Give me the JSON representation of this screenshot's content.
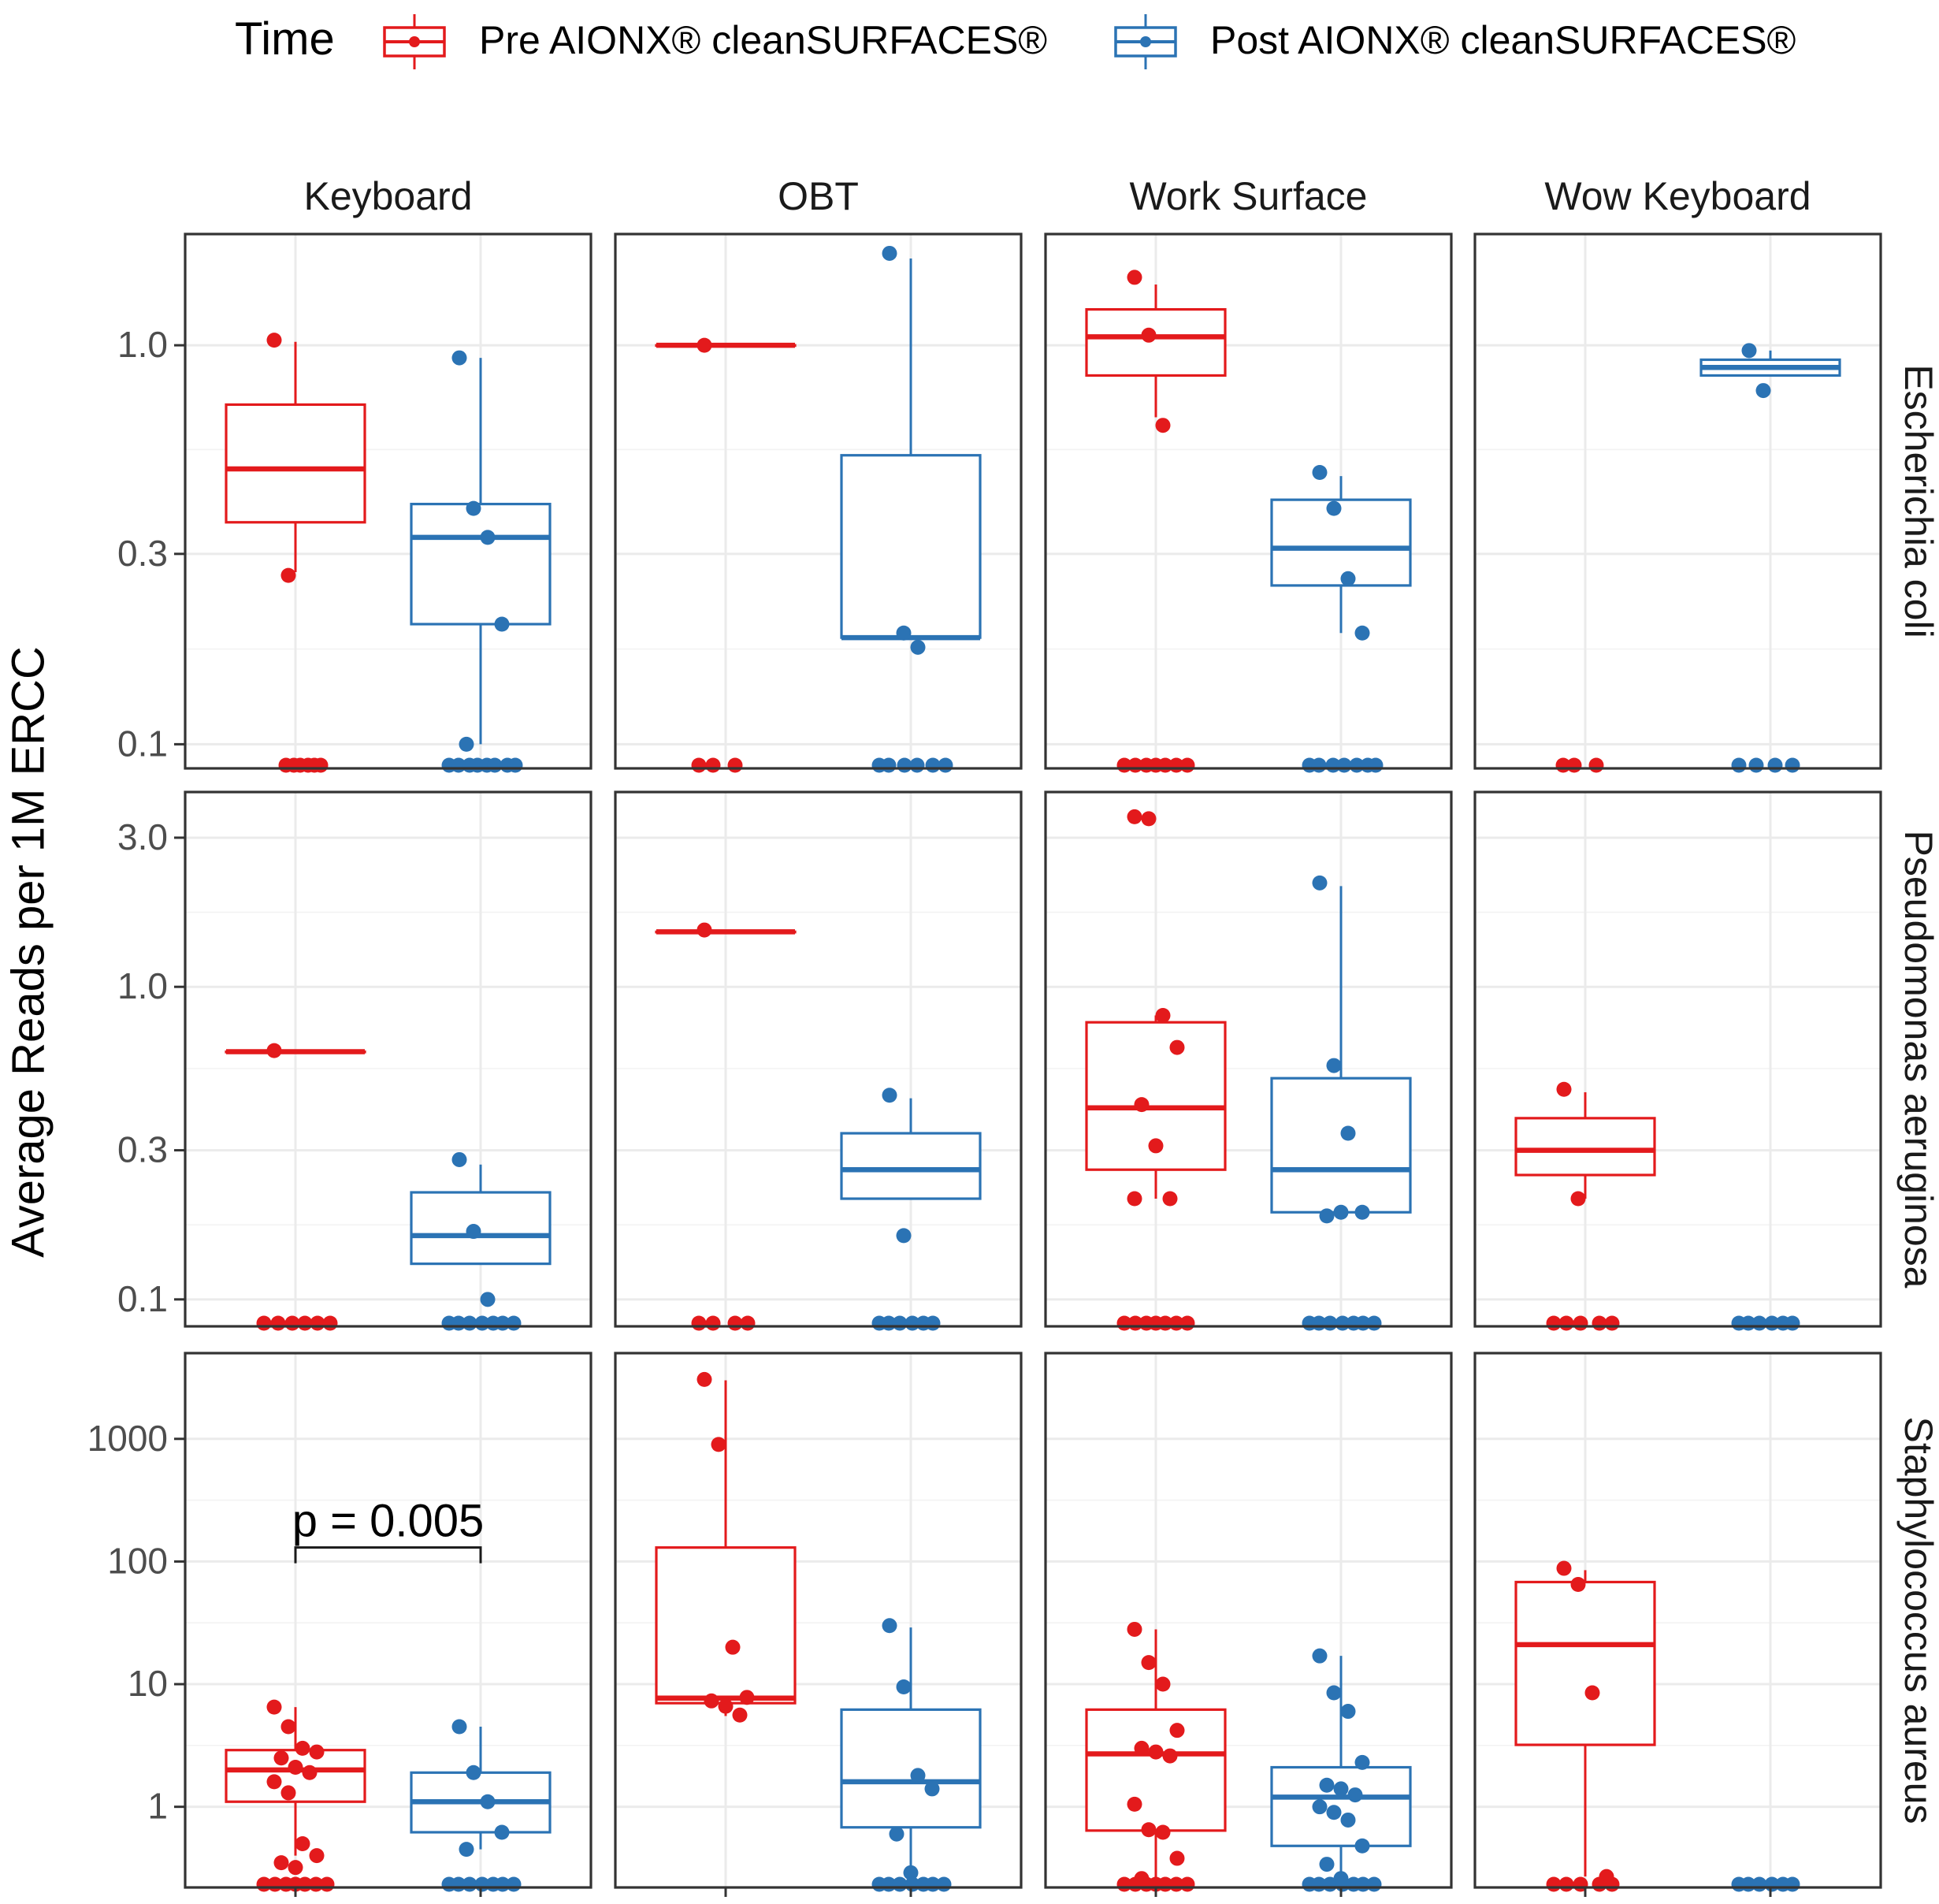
{
  "legend": {
    "title": "Time",
    "items": [
      {
        "label": "Pre AIONX® cleanSURFACES®",
        "color": "#e31a1c"
      },
      {
        "label": "Post AIONX® cleanSURFACES®",
        "color": "#2b73b4"
      }
    ]
  },
  "y_axis_label": "Average Reads per 1M ERCC",
  "chart_data": {
    "type": "boxplot",
    "scale": "log10",
    "columns": [
      "Keyboard",
      "OBT",
      "Work Surface",
      "Wow Keyboard"
    ],
    "groups": [
      "Pre AIONX® cleanSURFACES®",
      "Post AIONX® cleanSURFACES®"
    ],
    "colors": [
      "#e31a1c",
      "#2b73b4"
    ],
    "rows": [
      {
        "organism": "Escherichia coli",
        "ylim": [
          0.087,
          1.9
        ],
        "ticks": [
          {
            "v": 0.1,
            "label": "0.1"
          },
          {
            "v": 0.3,
            "label": "0.3"
          },
          {
            "v": 1.0,
            "label": "1.0"
          }
        ],
        "panels": [
          {
            "boxes": [
              {
                "box": [
                  0.36,
                  0.49,
                  0.71
                ],
                "whiskers": [
                  0.27,
                  1.02
                ],
                "points": [
                  1.03,
                  0.265
                ],
                "zeros": [
                  -12,
                  -2,
                  6,
                  16,
                  24,
                  32
                ]
              },
              {
                "box": [
                  0.2,
                  0.33,
                  0.4
                ],
                "whiskers": [
                  0.1,
                  0.93
                ],
                "points": [
                  0.93,
                  0.39,
                  0.33,
                  0.2,
                  0.1
                ],
                "zeros": [
                  -40,
                  -28,
                  -14,
                  -4,
                  8,
                  18,
                  34,
                  44
                ]
              }
            ]
          },
          {
            "boxes": [
              {
                "box": [
                  1.0,
                  1.0,
                  1.0
                ],
                "whiskers": [
                  1.0,
                  1.0
                ],
                "points": [
                  1.0
                ],
                "zeros": [
                  -34,
                  -16,
                  12
                ]
              },
              {
                "box": [
                  0.185,
                  0.185,
                  0.53
                ],
                "whiskers": [
                  0.185,
                  1.65
                ],
                "points": [
                  1.7,
                  0.19,
                  0.175
                ],
                "zeros": [
                  -40,
                  -28,
                  -8,
                  8,
                  28,
                  44
                ]
              }
            ]
          },
          {
            "boxes": [
              {
                "box": [
                  0.84,
                  1.05,
                  1.23
                ],
                "whiskers": [
                  0.66,
                  1.42
                ],
                "points": [
                  1.48,
                  1.06,
                  0.63
                ],
                "zeros": [
                  -40,
                  -26,
                  -12,
                  0,
                  12,
                  26,
                  40
                ]
              },
              {
                "box": [
                  0.25,
                  0.31,
                  0.41
                ],
                "whiskers": [
                  0.19,
                  0.47
                ],
                "points": [
                  0.48,
                  0.39,
                  0.26,
                  0.19
                ],
                "zeros": [
                  -40,
                  -28,
                  -10,
                  4,
                  20,
                  34,
                  44
                ]
              }
            ]
          },
          {
            "boxes": [
              {
                "box": null,
                "whiskers": null,
                "points": [],
                "zeros": [
                  -28,
                  -14,
                  14
                ]
              },
              {
                "box": [
                  0.84,
                  0.88,
                  0.92
                ],
                "whiskers": [
                  0.84,
                  0.97
                ],
                "points": [
                  0.97,
                  0.77
                ],
                "zeros": [
                  -40,
                  -18,
                  6,
                  28
                ]
              }
            ]
          }
        ]
      },
      {
        "organism": "Pseudomonas aeruginosa",
        "ylim": [
          0.082,
          4.2
        ],
        "ticks": [
          {
            "v": 0.1,
            "label": "0.1"
          },
          {
            "v": 0.3,
            "label": "0.3"
          },
          {
            "v": 1.0,
            "label": "1.0"
          },
          {
            "v": 3.0,
            "label": "3.0"
          }
        ],
        "panels": [
          {
            "boxes": [
              {
                "box": [
                  0.62,
                  0.62,
                  0.62
                ],
                "whiskers": [
                  0.62,
                  0.62
                ],
                "points": [
                  0.625
                ],
                "zeros": [
                  -40,
                  -22,
                  -4,
                  12,
                  28,
                  44
                ]
              },
              {
                "box": [
                  0.13,
                  0.16,
                  0.22
                ],
                "whiskers": [
                  0.13,
                  0.27
                ],
                "points": [
                  0.28,
                  0.165,
                  0.1
                ],
                "zeros": [
                  -40,
                  -28,
                  -14,
                  2,
                  16,
                  28,
                  42
                ]
              }
            ]
          },
          {
            "boxes": [
              {
                "box": [
                  1.5,
                  1.5,
                  1.5
                ],
                "whiskers": [
                  1.5,
                  1.5
                ],
                "points": [
                  1.52
                ],
                "zeros": [
                  -34,
                  -16,
                  12,
                  28
                ]
              },
              {
                "box": [
                  0.21,
                  0.26,
                  0.34
                ],
                "whiskers": [
                  0.21,
                  0.44
                ],
                "points": [
                  0.45,
                  0.16
                ],
                "zeros": [
                  -40,
                  -28,
                  -14,
                  2,
                  16,
                  28
                ]
              }
            ]
          },
          {
            "boxes": [
              {
                "box": [
                  0.26,
                  0.41,
                  0.77
                ],
                "whiskers": [
                  0.21,
                  0.81
                ],
                "points": [
                  3.5,
                  3.45,
                  0.81,
                  0.64,
                  0.42,
                  0.31,
                  0.21,
                  0.21
                ],
                "zeros": [
                  -40,
                  -26,
                  -12,
                  0,
                  12,
                  26,
                  40
                ]
              },
              {
                "box": [
                  0.19,
                  0.26,
                  0.51
                ],
                "whiskers": [
                  0.19,
                  2.1
                ],
                "points": [
                  2.15,
                  0.56,
                  0.34,
                  0.19,
                  0.185,
                  0.19
                ],
                "zeros": [
                  -40,
                  -28,
                  -14,
                  2,
                  16,
                  28,
                  42
                ]
              }
            ]
          },
          {
            "boxes": [
              {
                "box": [
                  0.25,
                  0.3,
                  0.38
                ],
                "whiskers": [
                  0.21,
                  0.46
                ],
                "points": [
                  0.47,
                  0.21
                ],
                "zeros": [
                  -40,
                  -24,
                  -6,
                  18,
                  34
                ]
              },
              {
                "box": null,
                "whiskers": null,
                "points": [],
                "zeros": [
                  -40,
                  -28,
                  -14,
                  2,
                  16,
                  28
                ]
              }
            ]
          }
        ]
      },
      {
        "organism": "Staphylococcus aureus",
        "ylim": [
          0.22,
          5000
        ],
        "ticks": [
          {
            "v": 1,
            "label": "1"
          },
          {
            "v": 10,
            "label": "10"
          },
          {
            "v": 100,
            "label": "100"
          },
          {
            "v": 1000,
            "label": "1000"
          }
        ],
        "panels": [
          {
            "boxes": [
              {
                "box": [
                  1.1,
                  2.0,
                  2.9
                ],
                "whiskers": [
                  0.4,
                  6.5
                ],
                "points": [
                  6.5,
                  4.5,
                  3.0,
                  2.8,
                  2.5,
                  2.1,
                  1.9,
                  1.6,
                  1.3,
                  0.5,
                  0.4,
                  0.35,
                  0.32
                ],
                "zeros": [
                  -40,
                  -26,
                  -12,
                  0,
                  12,
                  26,
                  40
                ]
              },
              {
                "box": [
                  0.62,
                  1.1,
                  1.9
                ],
                "whiskers": [
                  0.45,
                  4.5
                ],
                "points": [
                  4.5,
                  1.9,
                  1.1,
                  0.62,
                  0.45
                ],
                "zeros": [
                  -40,
                  -28,
                  -14,
                  2,
                  16,
                  28,
                  42
                ]
              }
            ],
            "annotation": {
              "text": "p = 0.005",
              "between": [
                0,
                1
              ],
              "y": 130
            }
          },
          {
            "boxes": [
              {
                "box": [
                  7.0,
                  7.7,
                  130
                ],
                "whiskers": [
                  5.5,
                  3000
                ],
                "points": [
                  3050,
                  900,
                  20,
                  7.8,
                  7.3,
                  6.6,
                  5.6
                ],
                "zeros": []
              },
              {
                "box": [
                  0.68,
                  1.6,
                  6.2
                ],
                "whiskers": [
                  0.29,
                  29
                ],
                "points": [
                  30,
                  9.5,
                  1.8,
                  1.4,
                  0.6,
                  0.29
                ],
                "zeros": [
                  -40,
                  -28,
                  -14,
                  2,
                  16,
                  28,
                  42
                ]
              }
            ]
          },
          {
            "boxes": [
              {
                "box": [
                  0.64,
                  2.7,
                  6.2
                ],
                "whiskers": [
                  0.24,
                  28
                ],
                "points": [
                  28,
                  15,
                  10,
                  4.2,
                  3.0,
                  2.8,
                  2.6,
                  1.05,
                  0.65,
                  0.62,
                  0.38,
                  0.26
                ],
                "zeros": [
                  -40,
                  -26,
                  -12,
                  0,
                  12,
                  26,
                  40
                ]
              },
              {
                "box": [
                  0.48,
                  1.2,
                  2.1
                ],
                "whiskers": [
                  0.26,
                  17
                ],
                "points": [
                  17,
                  8.5,
                  6.0,
                  2.3,
                  1.5,
                  1.4,
                  1.25,
                  1.0,
                  0.9,
                  0.78,
                  0.48,
                  0.34,
                  0.26
                ],
                "zeros": [
                  -40,
                  -28,
                  -14,
                  2,
                  16,
                  28,
                  42
                ]
              }
            ]
          },
          {
            "boxes": [
              {
                "box": [
                  3.2,
                  21,
                  68
                ],
                "whiskers": [
                  0.27,
                  85
                ],
                "points": [
                  88,
                  65,
                  8.5,
                  0.27
                ],
                "zeros": [
                  -40,
                  -24,
                  -6,
                  18,
                  34
                ]
              },
              {
                "box": null,
                "whiskers": null,
                "points": [],
                "zeros": [
                  -40,
                  -28,
                  -14,
                  2,
                  16,
                  28
                ]
              }
            ]
          }
        ]
      }
    ]
  }
}
